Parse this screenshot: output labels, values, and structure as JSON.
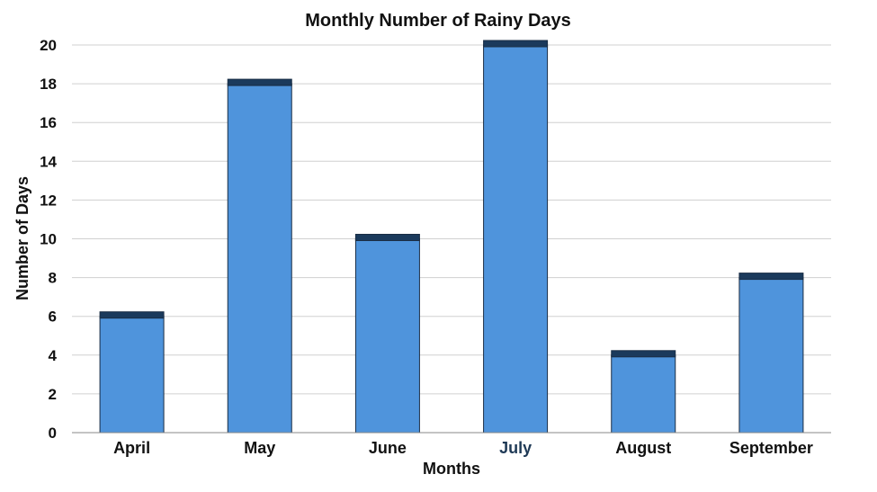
{
  "chart_data": {
    "type": "bar",
    "title": "Monthly Number of Rainy Days",
    "xlabel": "Months",
    "ylabel": "Number of Days",
    "categories": [
      "April",
      "May",
      "June",
      "July",
      "August",
      "September"
    ],
    "values": [
      6,
      18,
      10,
      20,
      4,
      8
    ],
    "ylim": [
      0,
      20
    ],
    "yticks": [
      0,
      2,
      4,
      6,
      8,
      10,
      12,
      14,
      16,
      18,
      20
    ],
    "grid": true,
    "highlighted_category": "July",
    "colors": {
      "bar_fill": "#4f94dc",
      "bar_cap": "#1b3a5c",
      "bar_stroke": "#1b2e45",
      "highlight_label": "#1f3a56"
    }
  }
}
